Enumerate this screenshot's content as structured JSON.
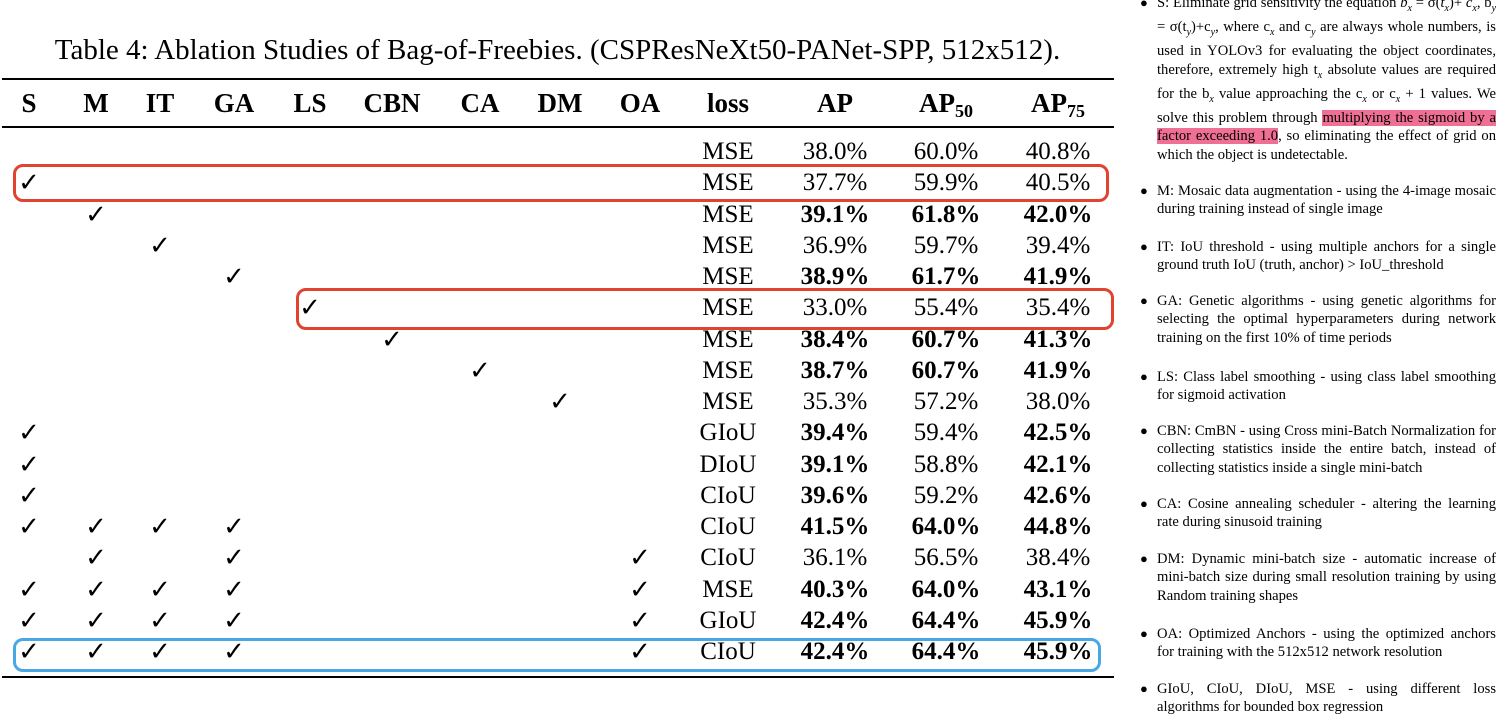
{
  "caption": "Table 4: Ablation Studies of Bag-of-Freebies. (CSPResNeXt50-PANet-SPP, 512x512).",
  "header": {
    "S": "S",
    "M": "M",
    "IT": "IT",
    "GA": "GA",
    "LS": "LS",
    "CBN": "CBN",
    "CA": "CA",
    "DM": "DM",
    "OA": "OA",
    "loss": "loss",
    "AP": "AP",
    "AP50_base": "AP",
    "AP50_sub": "50",
    "AP75_base": "AP",
    "AP75_sub": "75"
  },
  "check_mark": "✓",
  "rows": [
    {
      "checks": [],
      "loss": "MSE",
      "ap": "38.0%",
      "ap50": "60.0%",
      "ap75": "40.8%",
      "bold": []
    },
    {
      "checks": [
        "S"
      ],
      "loss": "MSE",
      "ap": "37.7%",
      "ap50": "59.9%",
      "ap75": "40.5%",
      "bold": []
    },
    {
      "checks": [
        "M"
      ],
      "loss": "MSE",
      "ap": "39.1%",
      "ap50": "61.8%",
      "ap75": "42.0%",
      "bold": [
        "ap",
        "ap50",
        "ap75"
      ]
    },
    {
      "checks": [
        "IT"
      ],
      "loss": "MSE",
      "ap": "36.9%",
      "ap50": "59.7%",
      "ap75": "39.4%",
      "bold": []
    },
    {
      "checks": [
        "GA"
      ],
      "loss": "MSE",
      "ap": "38.9%",
      "ap50": "61.7%",
      "ap75": "41.9%",
      "bold": [
        "ap",
        "ap50",
        "ap75"
      ]
    },
    {
      "checks": [
        "LS"
      ],
      "loss": "MSE",
      "ap": "33.0%",
      "ap50": "55.4%",
      "ap75": "35.4%",
      "bold": []
    },
    {
      "checks": [
        "CBN"
      ],
      "loss": "MSE",
      "ap": "38.4%",
      "ap50": "60.7%",
      "ap75": "41.3%",
      "bold": [
        "ap",
        "ap50",
        "ap75"
      ]
    },
    {
      "checks": [
        "CA"
      ],
      "loss": "MSE",
      "ap": "38.7%",
      "ap50": "60.7%",
      "ap75": "41.9%",
      "bold": [
        "ap",
        "ap50",
        "ap75"
      ]
    },
    {
      "checks": [
        "DM"
      ],
      "loss": "MSE",
      "ap": "35.3%",
      "ap50": "57.2%",
      "ap75": "38.0%",
      "bold": []
    },
    {
      "checks": [
        "S"
      ],
      "loss": "GIoU",
      "ap": "39.4%",
      "ap50": "59.4%",
      "ap75": "42.5%",
      "bold": [
        "ap",
        "ap75"
      ]
    },
    {
      "checks": [
        "S"
      ],
      "loss": "DIoU",
      "ap": "39.1%",
      "ap50": "58.8%",
      "ap75": "42.1%",
      "bold": [
        "ap",
        "ap75"
      ]
    },
    {
      "checks": [
        "S"
      ],
      "loss": "CIoU",
      "ap": "39.6%",
      "ap50": "59.2%",
      "ap75": "42.6%",
      "bold": [
        "ap",
        "ap75"
      ]
    },
    {
      "checks": [
        "S",
        "M",
        "IT",
        "GA"
      ],
      "loss": "CIoU",
      "ap": "41.5%",
      "ap50": "64.0%",
      "ap75": "44.8%",
      "bold": [
        "ap",
        "ap50",
        "ap75"
      ]
    },
    {
      "checks": [
        "M",
        "GA",
        "OA"
      ],
      "loss": "CIoU",
      "ap": "36.1%",
      "ap50": "56.5%",
      "ap75": "38.4%",
      "bold": []
    },
    {
      "checks": [
        "S",
        "M",
        "IT",
        "GA",
        "OA"
      ],
      "loss": "MSE",
      "ap": "40.3%",
      "ap50": "64.0%",
      "ap75": "43.1%",
      "bold": [
        "ap",
        "ap50",
        "ap75"
      ]
    },
    {
      "checks": [
        "S",
        "M",
        "IT",
        "GA",
        "OA"
      ],
      "loss": "GIoU",
      "ap": "42.4%",
      "ap50": "64.4%",
      "ap75": "45.9%",
      "bold": [
        "ap",
        "ap50",
        "ap75"
      ]
    },
    {
      "checks": [
        "S",
        "M",
        "IT",
        "GA",
        "OA"
      ],
      "loss": "CIoU",
      "ap": "42.4%",
      "ap50": "64.4%",
      "ap75": "45.9%",
      "bold": [
        "ap",
        "ap50",
        "ap75"
      ]
    }
  ],
  "highlight_colors": {
    "red": "#e0432f",
    "blue": "#4aa7e6",
    "pink": "#ef6f95"
  },
  "notes": {
    "s": {
      "t1": "S: Eliminate grid sensitivity the equation ",
      "m1": "b",
      "s1": "x",
      "t2": " = σ(",
      "m2": "t",
      "s2": "x",
      "t3": ")+",
      "line2a": "c",
      "line2b": "x",
      "line2c": ", b",
      "line2d": "y",
      "line2e": " = σ(t",
      "line2f": "y",
      "line2g": ")+c",
      "line2h": "y",
      "line2i": ", where c",
      "line2j": "x",
      "line2k": " and c",
      "line2l": "y",
      "line2m": " are always whole numbers, is used in YOLOv3 for evaluating the object coordinates, therefore, extremely high t",
      "line2n": "x",
      "line2o": " absolute values are required for the b",
      "line2p": "x",
      "line2q": " value approaching the c",
      "line2r": "x",
      "line2s": " or c",
      "line2t": "x",
      "line2u": " + 1 values.  We solve this problem through ",
      "highlight": "multiplying the sigmoid by a factor exceeding 1.0",
      "tail": ", so eliminating the effect of grid on which the object is undetectable."
    },
    "items": [
      "M: Mosaic data augmentation - using the 4-image mosaic during training instead of single image",
      "IT: IoU threshold - using multiple anchors for a single ground truth IoU (truth, anchor) > IoU_threshold",
      "GA: Genetic algorithms - using genetic algorithms for selecting the optimal hyperparameters during network training on the first 10% of time periods",
      "LS: Class label smoothing - using class label smoothing for sigmoid activation",
      "CBN: CmBN - using Cross mini-Batch Normalization for collecting statistics inside the entire batch, instead of collecting statistics inside a single mini-batch",
      "CA: Cosine annealing scheduler - altering the learning rate during sinusoid training",
      "DM: Dynamic mini-batch size - automatic increase of mini-batch size during small resolution training by using Random training shapes",
      "OA: Optimized Anchors - using the optimized anchors for training with the 512x512 network resolution",
      "GIoU, CIoU, DIoU, MSE - using different loss algorithms for bounded box regression"
    ]
  }
}
